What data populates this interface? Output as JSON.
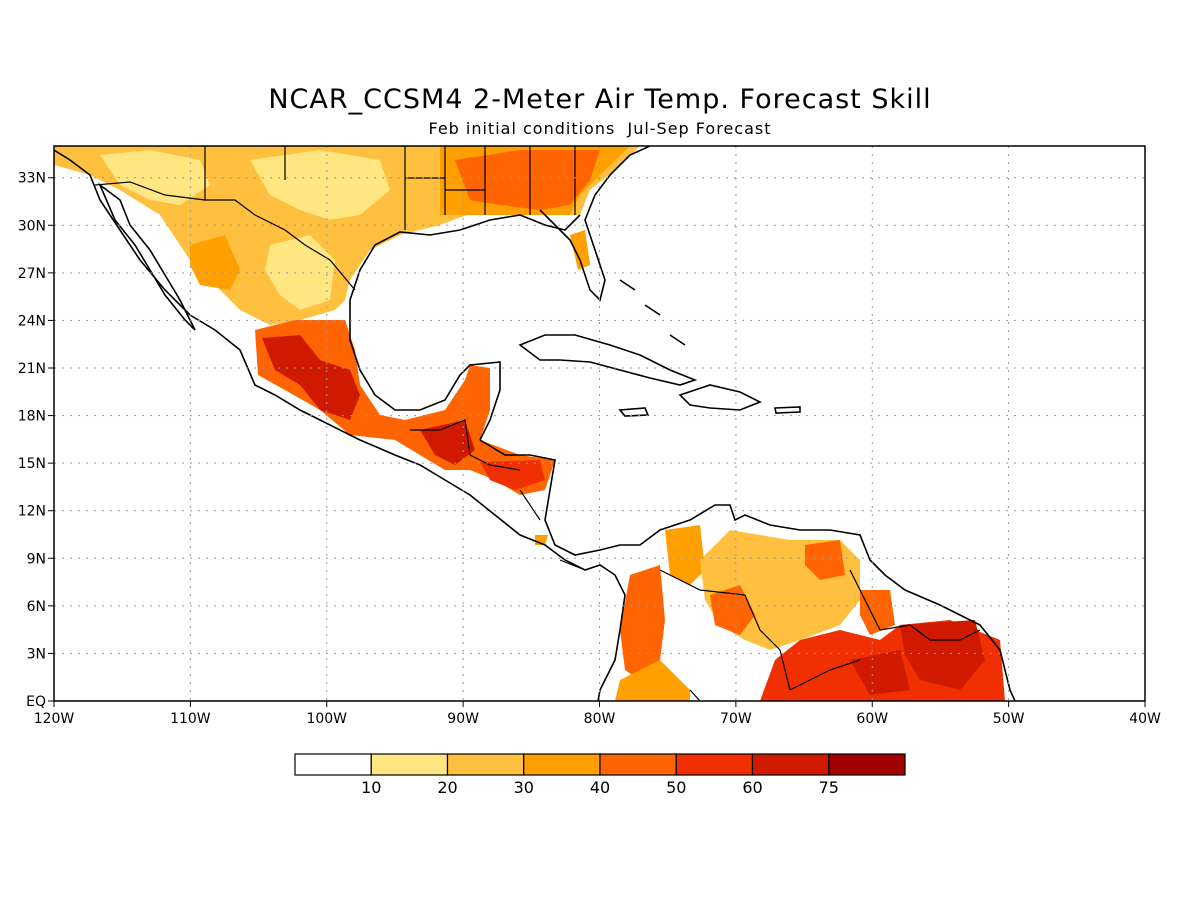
{
  "title": "NCAR_CCSM4 2-Meter Air Temp. Forecast Skill",
  "subtitle": "Feb initial conditions  Jul-Sep Forecast",
  "map": {
    "lon_range": [
      -120,
      -40
    ],
    "lat_range": [
      0,
      35
    ],
    "lon_ticks": [
      {
        "value": -120,
        "label": "120W"
      },
      {
        "value": -110,
        "label": "110W"
      },
      {
        "value": -100,
        "label": "100W"
      },
      {
        "value": -90,
        "label": "90W"
      },
      {
        "value": -80,
        "label": "80W"
      },
      {
        "value": -70,
        "label": "70W"
      },
      {
        "value": -60,
        "label": "60W"
      },
      {
        "value": -50,
        "label": "50W"
      },
      {
        "value": -40,
        "label": "40W"
      }
    ],
    "lat_ticks": [
      {
        "value": 0,
        "label": "EQ"
      },
      {
        "value": 3,
        "label": "3N"
      },
      {
        "value": 6,
        "label": "6N"
      },
      {
        "value": 9,
        "label": "9N"
      },
      {
        "value": 12,
        "label": "12N"
      },
      {
        "value": 15,
        "label": "15N"
      },
      {
        "value": 18,
        "label": "18N"
      },
      {
        "value": 21,
        "label": "21N"
      },
      {
        "value": 24,
        "label": "24N"
      },
      {
        "value": 27,
        "label": "27N"
      },
      {
        "value": 30,
        "label": "30N"
      },
      {
        "value": 33,
        "label": "33N"
      }
    ],
    "grid": "dotted"
  },
  "legend": {
    "colors": [
      "#ffffff",
      "#ffe680",
      "#ffc040",
      "#ffa000",
      "#ff6400",
      "#f03000",
      "#d01a00",
      "#a00000"
    ],
    "labels": [
      "10",
      "20",
      "30",
      "40",
      "50",
      "60",
      "75"
    ]
  }
}
